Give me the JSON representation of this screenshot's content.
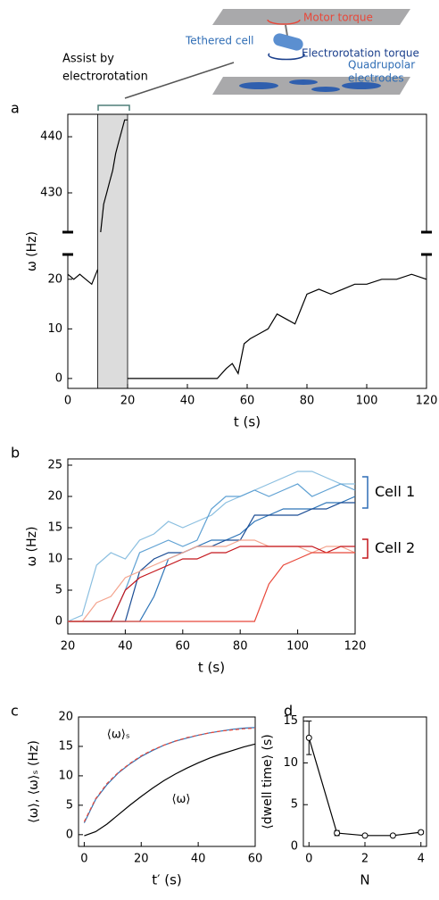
{
  "schematic": {
    "motor": "Motor torque",
    "cell": "Tethered cell",
    "electro": "Electrorotation torque",
    "electrodes": [
      "Quadrupolar",
      "electrodes"
    ],
    "assist": [
      "Assist by",
      "electrorotation"
    ]
  },
  "chart_data": [
    {
      "type": "line",
      "panel": "a",
      "xlabel": "t (s)",
      "ylabel": "ω (Hz)",
      "x": [
        0,
        2,
        4,
        6,
        8,
        10,
        11,
        12,
        13,
        14,
        15,
        16,
        17,
        18,
        19,
        20,
        20,
        30,
        40,
        50,
        53,
        55,
        57,
        59,
        61,
        64,
        67,
        70,
        73,
        76,
        78,
        80,
        84,
        88,
        92,
        96,
        100,
        105,
        110,
        115,
        120
      ],
      "shade": [
        10,
        20
      ],
      "shade_color": "#dcdcdc",
      "series": [
        {
          "color": "#000000",
          "values": [
            21,
            20,
            21,
            20,
            19,
            22,
            null,
            null,
            null,
            null,
            null,
            null,
            null,
            null,
            null,
            null,
            0,
            0,
            0,
            0,
            2,
            3,
            1,
            7,
            8,
            9,
            10,
            13,
            12,
            11,
            14,
            17,
            18,
            17,
            18,
            19,
            19,
            20,
            20,
            21,
            20
          ]
        },
        {
          "color": "#000000",
          "axis": "y2",
          "values": [
            null,
            null,
            null,
            null,
            null,
            null,
            423,
            428,
            430,
            432,
            434,
            437,
            439,
            441,
            443,
            443,
            null,
            null,
            null,
            null,
            null,
            null,
            null,
            null,
            null,
            null,
            null,
            null,
            null,
            null,
            null,
            null,
            null,
            null,
            null,
            null,
            null,
            null,
            null,
            null,
            null
          ]
        }
      ],
      "xlim": [
        0,
        120
      ],
      "xticks": [
        0,
        20,
        40,
        60,
        80,
        100,
        120
      ],
      "ylim": [
        -2,
        25
      ],
      "yticks": [
        0,
        10,
        20
      ],
      "y2lim": [
        423,
        444
      ],
      "y2ticks": [
        430,
        440
      ]
    },
    {
      "type": "line",
      "panel": "b",
      "xlabel": "t (s)",
      "ylabel": "ω (Hz)",
      "x": [
        20,
        25,
        30,
        35,
        40,
        45,
        50,
        55,
        60,
        65,
        70,
        75,
        80,
        85,
        90,
        95,
        100,
        105,
        110,
        115,
        120
      ],
      "groups": [
        {
          "label": "Cell 1",
          "color": "#2f6db5",
          "series": [
            {
              "color": "#8bbfe0",
              "values": [
                0,
                1,
                9,
                11,
                10,
                13,
                14,
                16,
                15,
                16,
                17,
                19,
                20,
                21,
                22,
                23,
                24,
                24,
                23,
                22,
                22
              ]
            },
            {
              "color": "#5fa1d3",
              "values": [
                0,
                0,
                0,
                0,
                5,
                11,
                12,
                13,
                12,
                13,
                18,
                20,
                20,
                21,
                20,
                21,
                22,
                20,
                21,
                22,
                21
              ]
            },
            {
              "color": "#2e75b8",
              "values": [
                0,
                0,
                0,
                0,
                0,
                0,
                4,
                10,
                11,
                12,
                13,
                13,
                14,
                16,
                17,
                18,
                18,
                18,
                19,
                19,
                20
              ]
            },
            {
              "color": "#1a4c94",
              "values": [
                0,
                0,
                0,
                0,
                0,
                8,
                10,
                11,
                11,
                12,
                12,
                13,
                13,
                17,
                17,
                17,
                17,
                18,
                18,
                19,
                19
              ]
            }
          ]
        },
        {
          "label": "Cell 2",
          "color": "#c4161c",
          "series": [
            {
              "color": "#f4a48e",
              "values": [
                0,
                0,
                3,
                4,
                7,
                8,
                9,
                10,
                11,
                12,
                12,
                12,
                13,
                13,
                12,
                12,
                12,
                11,
                12,
                12,
                11
              ]
            },
            {
              "color": "#c4161c",
              "values": [
                0,
                0,
                0,
                0,
                5,
                7,
                8,
                9,
                10,
                10,
                11,
                11,
                12,
                12,
                12,
                12,
                12,
                12,
                11,
                12,
                12
              ]
            },
            {
              "color": "#e8483a",
              "values": [
                0,
                0,
                0,
                0,
                0,
                0,
                0,
                0,
                0,
                0,
                0,
                0,
                0,
                0,
                6,
                9,
                10,
                11,
                11,
                11,
                11
              ]
            }
          ]
        }
      ],
      "xlim": [
        20,
        120
      ],
      "xticks": [
        20,
        40,
        60,
        80,
        100,
        120
      ],
      "ylim": [
        -2,
        26
      ],
      "yticks": [
        0,
        5,
        10,
        15,
        20,
        25
      ]
    },
    {
      "type": "line",
      "panel": "c",
      "xlabel": "t′ (s)",
      "ylabel": "⟨ω⟩, ⟨ω⟩ₛ (Hz)",
      "x": [
        0,
        4,
        8,
        12,
        16,
        20,
        24,
        28,
        32,
        36,
        40,
        44,
        48,
        52,
        56,
        60
      ],
      "series": [
        {
          "name": "⟨ω⟩ₛ",
          "color": "#2e75b8",
          "values": [
            2,
            6,
            8.5,
            10.5,
            12,
            13.3,
            14.3,
            15.2,
            15.9,
            16.4,
            16.9,
            17.3,
            17.6,
            17.9,
            18.1,
            18.2
          ]
        },
        {
          "color": "#e8483a",
          "dash": true,
          "values": [
            2.2,
            6.1,
            8.7,
            10.6,
            12.1,
            13.4,
            14.4,
            15.2,
            15.9,
            16.5,
            16.9,
            17.3,
            17.6,
            17.8,
            18,
            18.1
          ]
        },
        {
          "name": "⟨ω⟩",
          "color": "#000000",
          "values": [
            -0.2,
            0.5,
            1.8,
            3.4,
            5,
            6.5,
            7.9,
            9.2,
            10.3,
            11.3,
            12.2,
            13,
            13.7,
            14.3,
            14.9,
            15.4
          ]
        }
      ],
      "xlim": [
        -2,
        60
      ],
      "xticks": [
        0,
        20,
        40,
        60
      ],
      "ylim": [
        -2,
        20
      ],
      "yticks": [
        0,
        5,
        10,
        15,
        20
      ]
    },
    {
      "type": "errorbar",
      "panel": "d",
      "xlabel": "N",
      "ylabel": "⟨dwell time⟩ (s)",
      "x": [
        0,
        1,
        2,
        3,
        4
      ],
      "values": [
        13,
        1.6,
        1.3,
        1.3,
        1.7
      ],
      "errors": [
        2,
        0.3,
        0.1,
        0.1,
        0.2
      ],
      "color": "#000000",
      "xlim": [
        -0.2,
        4.2
      ],
      "xticks": [
        0,
        2,
        4
      ],
      "ylim": [
        0,
        15.5
      ],
      "yticks": [
        0,
        5,
        10,
        15
      ]
    }
  ]
}
